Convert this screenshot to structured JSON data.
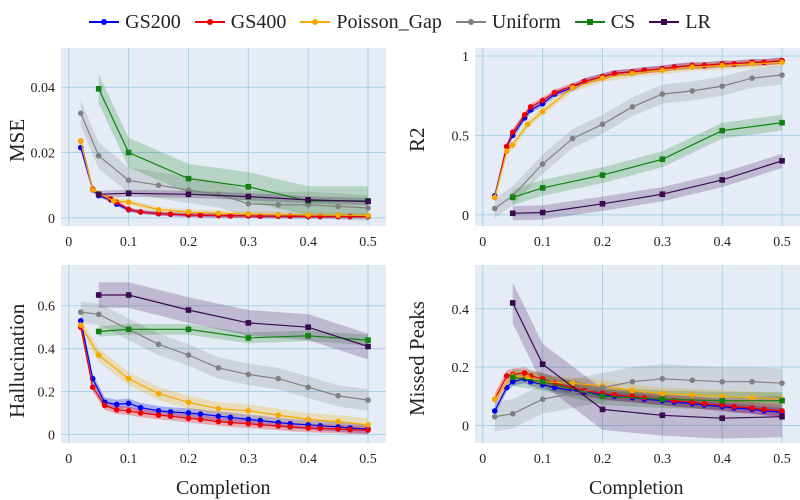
{
  "legend": [
    {
      "name": "GS200",
      "color": "#0000ee",
      "marker": "circle"
    },
    {
      "name": "GS400",
      "color": "#ee0000",
      "marker": "circle"
    },
    {
      "name": "Poisson_Gap",
      "color": "#f5a800",
      "marker": "circle"
    },
    {
      "name": "Uniform",
      "color": "#808080",
      "marker": "circle"
    },
    {
      "name": "CS",
      "color": "#128012",
      "marker": "square"
    },
    {
      "name": "LR",
      "color": "#3a0a50",
      "marker": "square"
    }
  ],
  "chart_data": [
    {
      "type": "line",
      "id": "mse",
      "xlabel": "",
      "ylabel": "MSE",
      "xlim": [
        -0.013,
        0.53
      ],
      "ylim": [
        -0.0025,
        0.052
      ],
      "xticks": [
        0,
        0.1,
        0.2,
        0.3,
        0.4,
        0.5
      ],
      "xtick_labels": [
        "0",
        "0.1",
        "0.2",
        "0.3",
        "0.4",
        "0.5"
      ],
      "yticks": [
        0,
        0.02,
        0.04
      ],
      "ytick_labels": [
        "0",
        "0.02",
        "0.04"
      ],
      "series": [
        {
          "name": "GS200",
          "x": [
            0.02,
            0.04,
            0.05,
            0.07,
            0.08,
            0.1,
            0.12,
            0.15,
            0.17,
            0.2,
            0.22,
            0.25,
            0.27,
            0.3,
            0.32,
            0.35,
            0.37,
            0.4,
            0.42,
            0.45,
            0.47,
            0.5
          ],
          "y": [
            0.0215,
            0.0085,
            0.0068,
            0.0055,
            0.0042,
            0.0025,
            0.0018,
            0.0013,
            0.0011,
            0.0009,
            0.0008,
            0.0007,
            0.0006,
            0.0006,
            0.0005,
            0.0005,
            0.0005,
            0.0004,
            0.0004,
            0.0004,
            0.0004,
            0.0004
          ],
          "band": 0.0006
        },
        {
          "name": "GS400",
          "x": [
            0.02,
            0.04,
            0.05,
            0.07,
            0.08,
            0.1,
            0.12,
            0.15,
            0.17,
            0.2,
            0.22,
            0.25,
            0.27,
            0.3,
            0.32,
            0.35,
            0.37,
            0.4,
            0.42,
            0.45,
            0.47,
            0.5
          ],
          "y": [
            0.0235,
            0.0088,
            0.0072,
            0.0058,
            0.0048,
            0.0026,
            0.0018,
            0.0013,
            0.0011,
            0.0009,
            0.0008,
            0.0007,
            0.0006,
            0.0006,
            0.0005,
            0.0005,
            0.0005,
            0.0004,
            0.0004,
            0.0004,
            0.0004,
            0.0004
          ],
          "band": 0.0006
        },
        {
          "name": "Poisson_Gap",
          "x": [
            0.02,
            0.04,
            0.05,
            0.075,
            0.1,
            0.15,
            0.2,
            0.25,
            0.3,
            0.35,
            0.4,
            0.45,
            0.5
          ],
          "y": [
            0.0235,
            0.0085,
            0.0075,
            0.0052,
            0.0048,
            0.0025,
            0.0018,
            0.0014,
            0.0012,
            0.001,
            0.0009,
            0.0008,
            0.0007
          ],
          "band": 0.0008
        },
        {
          "name": "Uniform",
          "x": [
            0.02,
            0.05,
            0.1,
            0.15,
            0.2,
            0.25,
            0.3,
            0.35,
            0.4,
            0.45,
            0.5
          ],
          "y": [
            0.032,
            0.019,
            0.0115,
            0.01,
            0.0085,
            0.0072,
            0.0043,
            0.004,
            0.004,
            0.0035,
            0.003
          ],
          "band": 0.004
        },
        {
          "name": "CS",
          "x": [
            0.05,
            0.1,
            0.2,
            0.3,
            0.4,
            0.5
          ],
          "y": [
            0.0395,
            0.02,
            0.012,
            0.0095,
            0.0052,
            0.0052
          ],
          "band": 0.0045
        },
        {
          "name": "LR",
          "x": [
            0.05,
            0.1,
            0.2,
            0.3,
            0.4,
            0.5
          ],
          "y": [
            0.0072,
            0.0075,
            0.0072,
            0.0065,
            0.0055,
            0.005
          ],
          "band": 0.0011
        }
      ]
    },
    {
      "type": "line",
      "id": "r2",
      "xlabel": "",
      "ylabel": "R2",
      "xlim": [
        -0.013,
        0.53
      ],
      "ylim": [
        -0.07,
        1.05
      ],
      "xticks": [
        0,
        0.1,
        0.2,
        0.3,
        0.4,
        0.5
      ],
      "xtick_labels": [
        "0",
        "0.1",
        "0.2",
        "0.3",
        "0.4",
        "0.5"
      ],
      "yticks": [
        0,
        0.5,
        1
      ],
      "ytick_labels": [
        "0",
        "0.5",
        "1"
      ],
      "series": [
        {
          "name": "GS200",
          "x": [
            0.02,
            0.04,
            0.05,
            0.07,
            0.08,
            0.1,
            0.12,
            0.15,
            0.17,
            0.2,
            0.22,
            0.25,
            0.27,
            0.3,
            0.32,
            0.35,
            0.37,
            0.4,
            0.42,
            0.45,
            0.47,
            0.5
          ],
          "y": [
            0.12,
            0.43,
            0.5,
            0.61,
            0.66,
            0.7,
            0.76,
            0.8,
            0.84,
            0.87,
            0.89,
            0.9,
            0.91,
            0.92,
            0.93,
            0.94,
            0.94,
            0.95,
            0.95,
            0.96,
            0.96,
            0.97
          ],
          "band": 0.02
        },
        {
          "name": "GS400",
          "x": [
            0.02,
            0.04,
            0.05,
            0.07,
            0.08,
            0.1,
            0.12,
            0.15,
            0.17,
            0.2,
            0.22,
            0.25,
            0.27,
            0.3,
            0.32,
            0.35,
            0.37,
            0.4,
            0.42,
            0.45,
            0.47,
            0.5
          ],
          "y": [
            0.11,
            0.43,
            0.52,
            0.63,
            0.68,
            0.72,
            0.77,
            0.81,
            0.84,
            0.87,
            0.89,
            0.9,
            0.91,
            0.92,
            0.93,
            0.94,
            0.94,
            0.95,
            0.95,
            0.96,
            0.96,
            0.97
          ],
          "band": 0.02
        },
        {
          "name": "Poisson_Gap",
          "x": [
            0.02,
            0.04,
            0.05,
            0.075,
            0.1,
            0.15,
            0.2,
            0.25,
            0.3,
            0.35,
            0.4,
            0.45,
            0.5
          ],
          "y": [
            0.11,
            0.4,
            0.44,
            0.57,
            0.65,
            0.8,
            0.86,
            0.89,
            0.91,
            0.93,
            0.94,
            0.95,
            0.96
          ],
          "band": 0.025
        },
        {
          "name": "Uniform",
          "x": [
            0.02,
            0.05,
            0.1,
            0.15,
            0.2,
            0.25,
            0.3,
            0.35,
            0.4,
            0.45,
            0.5
          ],
          "y": [
            0.04,
            0.12,
            0.32,
            0.48,
            0.57,
            0.68,
            0.76,
            0.78,
            0.81,
            0.86,
            0.88
          ],
          "band": 0.06
        },
        {
          "name": "CS",
          "x": [
            0.05,
            0.1,
            0.2,
            0.3,
            0.4,
            0.5
          ],
          "y": [
            0.11,
            0.17,
            0.25,
            0.35,
            0.53,
            0.58
          ],
          "band": 0.05
        },
        {
          "name": "LR",
          "x": [
            0.05,
            0.1,
            0.2,
            0.3,
            0.4,
            0.5
          ],
          "y": [
            0.01,
            0.015,
            0.07,
            0.13,
            0.22,
            0.34
          ],
          "band": 0.045
        }
      ]
    },
    {
      "type": "line",
      "id": "hallucination",
      "xlabel": "Completion",
      "ylabel": "Hallucination",
      "xlim": [
        -0.013,
        0.53
      ],
      "ylim": [
        -0.04,
        0.79
      ],
      "xticks": [
        0,
        0.1,
        0.2,
        0.3,
        0.4,
        0.5
      ],
      "xtick_labels": [
        "0",
        "0.1",
        "0.2",
        "0.3",
        "0.4",
        "0.5"
      ],
      "yticks": [
        0,
        0.2,
        0.4,
        0.6
      ],
      "ytick_labels": [
        "0",
        "0.2",
        "0.4",
        "0.6"
      ],
      "series": [
        {
          "name": "GS200",
          "x": [
            0.02,
            0.04,
            0.06,
            0.08,
            0.1,
            0.12,
            0.15,
            0.17,
            0.2,
            0.22,
            0.25,
            0.27,
            0.3,
            0.32,
            0.35,
            0.37,
            0.4,
            0.42,
            0.45,
            0.47,
            0.5
          ],
          "y": [
            0.53,
            0.26,
            0.15,
            0.14,
            0.145,
            0.125,
            0.11,
            0.105,
            0.1,
            0.095,
            0.085,
            0.08,
            0.07,
            0.065,
            0.055,
            0.05,
            0.045,
            0.04,
            0.035,
            0.03,
            0.025
          ],
          "band": 0.022
        },
        {
          "name": "GS400",
          "x": [
            0.02,
            0.04,
            0.06,
            0.08,
            0.1,
            0.12,
            0.15,
            0.17,
            0.2,
            0.22,
            0.25,
            0.27,
            0.3,
            0.32,
            0.35,
            0.37,
            0.4,
            0.42,
            0.45,
            0.47,
            0.5
          ],
          "y": [
            0.5,
            0.22,
            0.135,
            0.115,
            0.11,
            0.1,
            0.09,
            0.085,
            0.075,
            0.07,
            0.06,
            0.055,
            0.05,
            0.045,
            0.04,
            0.035,
            0.03,
            0.028,
            0.025,
            0.022,
            0.02
          ],
          "band": 0.02
        },
        {
          "name": "Poisson_Gap",
          "x": [
            0.02,
            0.05,
            0.1,
            0.15,
            0.2,
            0.25,
            0.3,
            0.35,
            0.4,
            0.45,
            0.5
          ],
          "y": [
            0.51,
            0.37,
            0.26,
            0.19,
            0.15,
            0.12,
            0.11,
            0.09,
            0.07,
            0.06,
            0.045
          ],
          "band": 0.03
        },
        {
          "name": "Uniform",
          "x": [
            0.02,
            0.05,
            0.1,
            0.15,
            0.2,
            0.25,
            0.3,
            0.35,
            0.4,
            0.45,
            0.5
          ],
          "y": [
            0.57,
            0.56,
            0.49,
            0.42,
            0.37,
            0.31,
            0.28,
            0.26,
            0.22,
            0.18,
            0.16
          ],
          "band": 0.05
        },
        {
          "name": "CS",
          "x": [
            0.05,
            0.1,
            0.2,
            0.3,
            0.4,
            0.5
          ],
          "y": [
            0.48,
            0.49,
            0.49,
            0.45,
            0.46,
            0.44
          ],
          "band": 0.025
        },
        {
          "name": "LR",
          "x": [
            0.05,
            0.1,
            0.2,
            0.3,
            0.4,
            0.5
          ],
          "y": [
            0.65,
            0.65,
            0.58,
            0.52,
            0.5,
            0.41
          ],
          "band": 0.06
        }
      ]
    },
    {
      "type": "line",
      "id": "missed_peaks",
      "xlabel": "Completion",
      "ylabel": "Missed Peaks",
      "xlim": [
        -0.013,
        0.53
      ],
      "ylim": [
        -0.06,
        0.55
      ],
      "xticks": [
        0,
        0.1,
        0.2,
        0.3,
        0.4,
        0.5
      ],
      "xtick_labels": [
        "0",
        "0.1",
        "0.2",
        "0.3",
        "0.4",
        "0.5"
      ],
      "yticks": [
        0,
        0.2,
        0.4
      ],
      "ytick_labels": [
        "0",
        "0.2",
        "0.4"
      ],
      "series": [
        {
          "name": "GS200",
          "x": [
            0.02,
            0.04,
            0.05,
            0.07,
            0.08,
            0.1,
            0.12,
            0.15,
            0.17,
            0.2,
            0.22,
            0.25,
            0.27,
            0.3,
            0.32,
            0.35,
            0.37,
            0.4,
            0.42,
            0.45,
            0.47,
            0.5
          ],
          "y": [
            0.05,
            0.13,
            0.15,
            0.16,
            0.15,
            0.14,
            0.13,
            0.12,
            0.115,
            0.105,
            0.1,
            0.095,
            0.09,
            0.085,
            0.08,
            0.075,
            0.07,
            0.065,
            0.06,
            0.055,
            0.05,
            0.045
          ],
          "band": 0.015
        },
        {
          "name": "GS400",
          "x": [
            0.02,
            0.04,
            0.05,
            0.07,
            0.08,
            0.1,
            0.12,
            0.15,
            0.17,
            0.2,
            0.22,
            0.25,
            0.27,
            0.3,
            0.32,
            0.35,
            0.37,
            0.4,
            0.42,
            0.45,
            0.47,
            0.5
          ],
          "y": [
            0.09,
            0.17,
            0.175,
            0.18,
            0.17,
            0.16,
            0.145,
            0.13,
            0.12,
            0.11,
            0.105,
            0.1,
            0.095,
            0.09,
            0.085,
            0.08,
            0.075,
            0.07,
            0.065,
            0.06,
            0.055,
            0.05
          ],
          "band": 0.02
        },
        {
          "name": "Poisson_Gap",
          "x": [
            0.02,
            0.05,
            0.075,
            0.1,
            0.15,
            0.2,
            0.25,
            0.3,
            0.35,
            0.4,
            0.45,
            0.5
          ],
          "y": [
            0.09,
            0.17,
            0.165,
            0.15,
            0.145,
            0.135,
            0.12,
            0.11,
            0.105,
            0.1,
            0.095,
            0.09
          ],
          "band": 0.02
        },
        {
          "name": "Uniform",
          "x": [
            0.02,
            0.05,
            0.1,
            0.15,
            0.2,
            0.25,
            0.3,
            0.35,
            0.4,
            0.45,
            0.5
          ],
          "y": [
            0.03,
            0.04,
            0.09,
            0.11,
            0.13,
            0.15,
            0.16,
            0.155,
            0.15,
            0.15,
            0.145
          ],
          "band": 0.05
        },
        {
          "name": "CS",
          "x": [
            0.05,
            0.1,
            0.2,
            0.3,
            0.4,
            0.5
          ],
          "y": [
            0.165,
            0.15,
            0.1,
            0.09,
            0.085,
            0.085
          ],
          "band": 0.03
        },
        {
          "name": "LR",
          "x": [
            0.05,
            0.1,
            0.2,
            0.3,
            0.4,
            0.5
          ],
          "y": [
            0.42,
            0.21,
            0.055,
            0.035,
            0.025,
            0.03
          ],
          "band": 0.07
        }
      ]
    }
  ]
}
